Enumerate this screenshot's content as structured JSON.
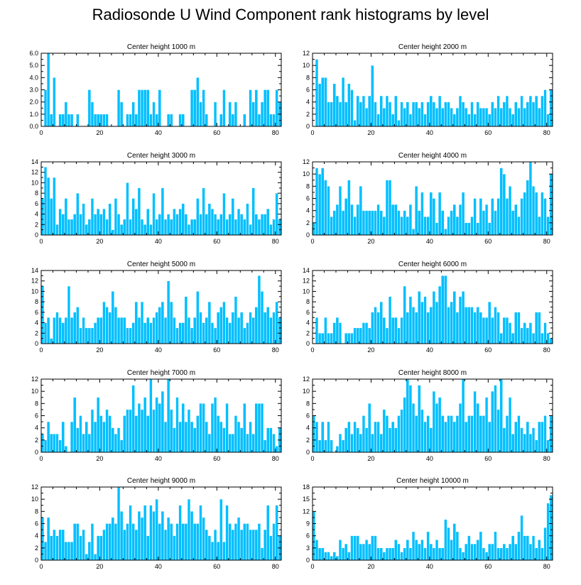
{
  "title": "Radiosonde U Wind Component rank histograms by level",
  "bar_color": "#00BFFF",
  "chart_data": [
    {
      "type": "bar",
      "title": "Center height 1000 m",
      "xlim": [
        0,
        82
      ],
      "xticks": [
        0,
        20,
        40,
        60,
        80
      ],
      "ylim": [
        0,
        6
      ],
      "yticks": [
        0,
        1,
        2,
        3,
        4,
        5,
        6
      ],
      "ytick_labels": [
        "0.0",
        "1.0",
        "2.0",
        "3.0",
        "4.0",
        "5.0",
        "6.0"
      ],
      "values": [
        0,
        3,
        6,
        1,
        4,
        0,
        1,
        1,
        2,
        1,
        1,
        0,
        1,
        0,
        0,
        0,
        3,
        2,
        1,
        1,
        1,
        1,
        1,
        0,
        0,
        0,
        3,
        2,
        0,
        1,
        1,
        2,
        1,
        3,
        3,
        3,
        3,
        1,
        2,
        1,
        3,
        0,
        0,
        1,
        1,
        0,
        0,
        1,
        1,
        0,
        0,
        3,
        3,
        4,
        2,
        3,
        1,
        0,
        0,
        2,
        0,
        1,
        3,
        0,
        2,
        1,
        2,
        0,
        0,
        1,
        0,
        3,
        2,
        3,
        1,
        2,
        3,
        3,
        1,
        1,
        3,
        2
      ]
    },
    {
      "type": "bar",
      "title": "Center height 2000 m",
      "xlim": [
        0,
        82
      ],
      "xticks": [
        0,
        20,
        40,
        60,
        80
      ],
      "ylim": [
        0,
        12
      ],
      "yticks": [
        0,
        2,
        4,
        6,
        8,
        10,
        12
      ],
      "ytick_labels": [
        "0",
        "2",
        "4",
        "6",
        "8",
        "10",
        "12"
      ],
      "values": [
        0,
        11,
        7,
        8,
        8,
        4,
        4,
        7,
        5,
        4,
        8,
        4,
        7,
        6,
        1,
        5,
        4,
        5,
        3,
        5,
        10,
        4,
        2,
        5,
        3,
        5,
        4,
        2,
        5,
        1,
        4,
        3,
        4,
        2,
        4,
        4,
        3,
        4,
        2,
        4,
        5,
        4,
        3,
        5,
        3,
        4,
        4,
        3,
        2,
        3,
        5,
        4,
        3,
        2,
        4,
        2,
        4,
        3,
        3,
        3,
        2,
        4,
        3,
        5,
        3,
        4,
        5,
        3,
        2,
        4,
        3,
        5,
        3,
        4,
        5,
        4,
        5,
        3,
        5,
        6,
        2,
        6
      ]
    },
    {
      "type": "bar",
      "title": "Center height 3000 m",
      "xlim": [
        0,
        82
      ],
      "xticks": [
        0,
        20,
        40,
        60,
        80
      ],
      "ylim": [
        0,
        14
      ],
      "yticks": [
        0,
        2,
        4,
        6,
        8,
        10,
        12,
        14
      ],
      "ytick_labels": [
        "0",
        "2",
        "4",
        "6",
        "8",
        "10",
        "12",
        "14"
      ],
      "values": [
        7,
        13,
        11,
        7,
        11,
        2,
        5,
        4,
        7,
        3,
        3,
        4,
        8,
        4,
        6,
        2,
        3,
        7,
        4,
        5,
        4,
        5,
        3,
        6,
        1,
        7,
        4,
        2,
        3,
        10,
        3,
        7,
        5,
        9,
        3,
        2,
        5,
        2,
        8,
        3,
        4,
        9,
        3,
        4,
        3,
        5,
        4,
        5,
        6,
        4,
        2,
        3,
        3,
        7,
        4,
        9,
        4,
        6,
        5,
        4,
        3,
        4,
        8,
        3,
        4,
        7,
        3,
        5,
        4,
        3,
        6,
        2,
        9,
        4,
        3,
        4,
        4,
        5,
        2,
        3,
        8,
        3
      ]
    },
    {
      "type": "bar",
      "title": "Center height 4000 m",
      "xlim": [
        0,
        82
      ],
      "xticks": [
        0,
        20,
        40,
        60,
        80
      ],
      "ylim": [
        0,
        12
      ],
      "yticks": [
        0,
        2,
        4,
        6,
        8,
        10,
        12
      ],
      "ytick_labels": [
        "0",
        "2",
        "4",
        "6",
        "8",
        "10",
        "12"
      ],
      "values": [
        2,
        11,
        10,
        11,
        9,
        8,
        3,
        4,
        5,
        8,
        4,
        6,
        9,
        5,
        3,
        5,
        8,
        4,
        4,
        4,
        4,
        4,
        5,
        4,
        3,
        9,
        9,
        5,
        5,
        4,
        3,
        4,
        3,
        5,
        1,
        8,
        4,
        7,
        3,
        3,
        7,
        6,
        2,
        7,
        4,
        1,
        3,
        4,
        5,
        3,
        5,
        7,
        2,
        2,
        3,
        6,
        2,
        6,
        4,
        5,
        2,
        6,
        4,
        6,
        11,
        10,
        6,
        8,
        4,
        5,
        3,
        6,
        7,
        9,
        12,
        8,
        7,
        3,
        7,
        6,
        3,
        10
      ]
    },
    {
      "type": "bar",
      "title": "Center height 5000 m",
      "xlim": [
        0,
        82
      ],
      "xticks": [
        0,
        20,
        40,
        60,
        80
      ],
      "ylim": [
        0,
        14
      ],
      "yticks": [
        0,
        2,
        4,
        6,
        8,
        10,
        12,
        14
      ],
      "ytick_labels": [
        "0",
        "2",
        "4",
        "6",
        "8",
        "10",
        "12",
        "14"
      ],
      "values": [
        11,
        4,
        5,
        1,
        5,
        6,
        5,
        4,
        5,
        11,
        5,
        6,
        7,
        3,
        5,
        3,
        3,
        3,
        4,
        5,
        5,
        8,
        7,
        6,
        10,
        7,
        5,
        5,
        5,
        3,
        3,
        4,
        8,
        5,
        8,
        4,
        5,
        4,
        5,
        6,
        7,
        8,
        5,
        12,
        8,
        5,
        3,
        4,
        4,
        9,
        5,
        3,
        5,
        10,
        6,
        4,
        5,
        8,
        4,
        3,
        6,
        7,
        8,
        5,
        4,
        6,
        9,
        5,
        6,
        3,
        4,
        6,
        5,
        7,
        13,
        10,
        6,
        7,
        5,
        6,
        8,
        5
      ]
    },
    {
      "type": "bar",
      "title": "Center height 6000 m",
      "xlim": [
        0,
        82
      ],
      "xticks": [
        0,
        20,
        40,
        60,
        80
      ],
      "ylim": [
        0,
        14
      ],
      "yticks": [
        0,
        2,
        4,
        6,
        8,
        10,
        12,
        14
      ],
      "ytick_labels": [
        "0",
        "2",
        "4",
        "6",
        "8",
        "10",
        "12",
        "14"
      ],
      "values": [
        0,
        5,
        2,
        2,
        5,
        2,
        2,
        4,
        5,
        4,
        0,
        2,
        2,
        2,
        3,
        3,
        3,
        4,
        4,
        3,
        6,
        7,
        6,
        8,
        5,
        3,
        9,
        5,
        5,
        3,
        5,
        11,
        6,
        9,
        7,
        6,
        10,
        8,
        9,
        6,
        7,
        10,
        8,
        11,
        13,
        13,
        7,
        8,
        10,
        6,
        9,
        10,
        7,
        7,
        7,
        6,
        7,
        6,
        5,
        5,
        8,
        5,
        7,
        6,
        2,
        5,
        5,
        4,
        2,
        6,
        6,
        3,
        4,
        3,
        4,
        2,
        6,
        6,
        2,
        4,
        2,
        1
      ]
    },
    {
      "type": "bar",
      "title": "Center height 7000 m",
      "xlim": [
        0,
        82
      ],
      "xticks": [
        0,
        20,
        40,
        60,
        80
      ],
      "ylim": [
        0,
        12
      ],
      "yticks": [
        0,
        2,
        4,
        6,
        8,
        10,
        12
      ],
      "ytick_labels": [
        "0",
        "2",
        "4",
        "6",
        "8",
        "10",
        "12"
      ],
      "values": [
        3,
        2,
        5,
        3,
        3,
        3,
        2,
        5,
        1,
        0,
        5,
        9,
        4,
        6,
        3,
        5,
        3,
        7,
        5,
        9,
        6,
        5,
        7,
        6,
        4,
        3,
        4,
        2,
        6,
        7,
        7,
        11,
        6,
        8,
        7,
        9,
        6,
        12,
        7,
        9,
        8,
        10,
        5,
        12,
        7,
        4,
        9,
        5,
        8,
        5,
        7,
        5,
        4,
        6,
        8,
        8,
        5,
        3,
        8,
        9,
        6,
        5,
        4,
        8,
        3,
        3,
        6,
        5,
        4,
        8,
        3,
        5,
        3,
        8,
        8,
        8,
        2,
        4,
        4,
        3,
        1,
        4
      ]
    },
    {
      "type": "bar",
      "title": "Center height 8000 m",
      "xlim": [
        0,
        82
      ],
      "xticks": [
        0,
        20,
        40,
        60,
        80
      ],
      "ylim": [
        0,
        12
      ],
      "yticks": [
        0,
        2,
        4,
        6,
        8,
        10,
        12
      ],
      "ytick_labels": [
        "0",
        "2",
        "4",
        "6",
        "8",
        "10",
        "12"
      ],
      "values": [
        6,
        5,
        2,
        5,
        2,
        5,
        2,
        0,
        1,
        3,
        2,
        4,
        5,
        3,
        5,
        4,
        3,
        6,
        4,
        8,
        3,
        5,
        5,
        3,
        7,
        6,
        4,
        5,
        4,
        6,
        7,
        9,
        12,
        11,
        8,
        6,
        11,
        7,
        5,
        6,
        4,
        10,
        8,
        9,
        6,
        5,
        6,
        6,
        5,
        6,
        8,
        12,
        5,
        6,
        6,
        10,
        8,
        6,
        6,
        9,
        5,
        10,
        11,
        7,
        12,
        4,
        6,
        9,
        3,
        5,
        6,
        4,
        3,
        5,
        3,
        4,
        2,
        5,
        5,
        6,
        2,
        6
      ]
    },
    {
      "type": "bar",
      "title": "Center height 9000 m",
      "xlim": [
        0,
        82
      ],
      "xticks": [
        0,
        20,
        40,
        60,
        80
      ],
      "ylim": [
        0,
        12
      ],
      "yticks": [
        0,
        2,
        4,
        6,
        8,
        10,
        12
      ],
      "ytick_labels": [
        "0",
        "2",
        "4",
        "6",
        "8",
        "10",
        "12"
      ],
      "values": [
        7,
        3,
        7,
        4,
        5,
        4,
        5,
        5,
        3,
        3,
        3,
        6,
        6,
        4,
        5,
        1,
        3,
        6,
        1,
        4,
        4,
        5,
        6,
        6,
        7,
        6,
        12,
        8,
        5,
        6,
        9,
        6,
        5,
        8,
        7,
        9,
        4,
        9,
        8,
        10,
        6,
        8,
        5,
        7,
        6,
        4,
        6,
        9,
        6,
        6,
        10,
        8,
        6,
        6,
        9,
        7,
        5,
        4,
        3,
        5,
        3,
        10,
        3,
        9,
        6,
        5,
        6,
        7,
        5,
        6,
        6,
        5,
        5,
        5,
        6,
        2,
        5,
        9,
        4,
        6,
        9,
        4
      ]
    },
    {
      "type": "bar",
      "title": "Center height 10000 m",
      "xlim": [
        0,
        82
      ],
      "xticks": [
        0,
        20,
        40,
        60,
        80
      ],
      "ylim": [
        0,
        18
      ],
      "yticks": [
        0,
        3,
        6,
        9,
        12,
        15,
        18
      ],
      "ytick_labels": [
        "0",
        "3",
        "6",
        "9",
        "12",
        "15",
        "18"
      ],
      "values": [
        12,
        5,
        3,
        3,
        2,
        2,
        1,
        2,
        1,
        5,
        3,
        4,
        2,
        6,
        6,
        6,
        4,
        4,
        5,
        4,
        6,
        6,
        3,
        3,
        2,
        3,
        3,
        3,
        5,
        4,
        2,
        3,
        5,
        3,
        7,
        5,
        4,
        5,
        3,
        7,
        4,
        3,
        5,
        3,
        3,
        10,
        8,
        5,
        9,
        7,
        3,
        2,
        4,
        6,
        4,
        4,
        5,
        7,
        3,
        2,
        4,
        4,
        7,
        3,
        3,
        4,
        3,
        4,
        6,
        4,
        7,
        11,
        6,
        6,
        4,
        6,
        3,
        5,
        3,
        8,
        14,
        16
      ]
    }
  ]
}
